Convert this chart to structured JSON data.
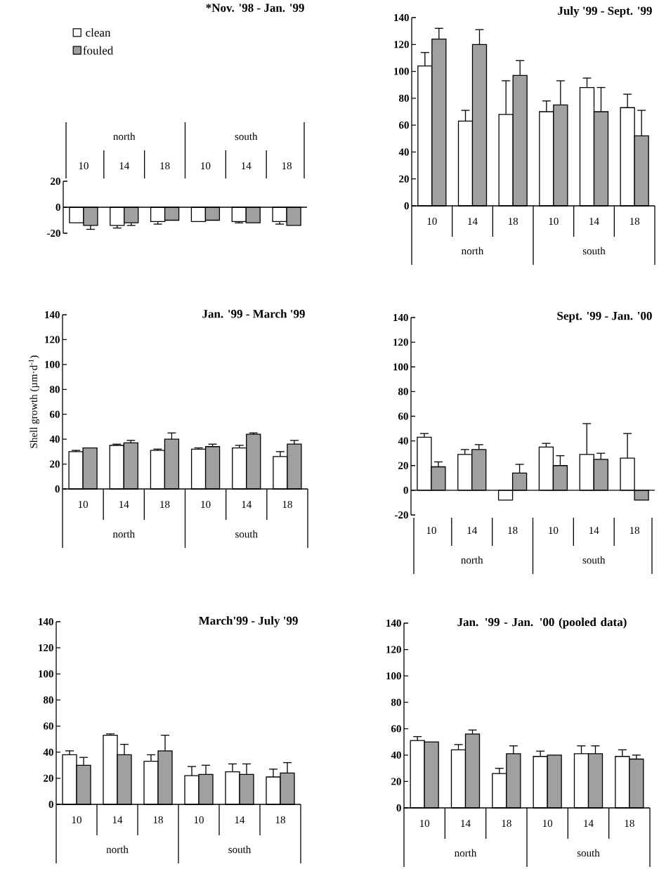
{
  "chart_data": [
    {
      "type": "bar",
      "title": "*Nov. '98 - Jan. '99",
      "categories": [
        "10",
        "14",
        "18",
        "10",
        "14",
        "18"
      ],
      "annotations": [
        "north",
        "south"
      ],
      "ylim": [
        -20,
        20
      ],
      "yticks": [
        -20,
        0,
        20
      ],
      "legend": "top left",
      "series": [
        {
          "name": "clean",
          "color": "#ffffff",
          "values": [
            -12,
            -14,
            -11,
            -11,
            -11,
            -11
          ],
          "errors": [
            null,
            [
              -16,
              -14
            ],
            [
              -13,
              -11
            ],
            null,
            [
              -12,
              -11
            ],
            [
              -13,
              -11
            ]
          ]
        },
        {
          "name": "fouled",
          "color": "#a0a0a0",
          "values": [
            -14,
            -12,
            -10,
            -10,
            -12,
            -14
          ],
          "errors": [
            [
              -17,
              -14
            ],
            [
              -14,
              -12
            ],
            null,
            null,
            null,
            null
          ]
        }
      ]
    },
    {
      "type": "bar",
      "title": "July '99 - Sept. '99",
      "categories": [
        "10",
        "14",
        "18",
        "10",
        "14",
        "18"
      ],
      "annotations": [
        "north",
        "south"
      ],
      "ylim": [
        0,
        140
      ],
      "yticks": [
        0,
        20,
        40,
        60,
        80,
        100,
        120,
        140
      ],
      "series": [
        {
          "color": "#ffffff",
          "values": [
            104,
            63,
            68,
            70,
            88,
            73
          ],
          "errors": [
            [
              104,
              114
            ],
            [
              63,
              71
            ],
            [
              68,
              93
            ],
            [
              70,
              78
            ],
            [
              88,
              95
            ],
            [
              73,
              83
            ]
          ]
        },
        {
          "color": "#a0a0a0",
          "values": [
            124,
            120,
            97,
            75,
            70,
            52
          ],
          "errors": [
            [
              124,
              132
            ],
            [
              120,
              131
            ],
            [
              97,
              108
            ],
            [
              75,
              93
            ],
            [
              70,
              88
            ],
            [
              52,
              71
            ]
          ]
        }
      ]
    },
    {
      "type": "bar",
      "title": "Jan. '99 - March '99",
      "ylabel": "Shell growth (µm·d$^{-1}$)",
      "categories": [
        "10",
        "14",
        "18",
        "10",
        "14",
        "18"
      ],
      "annotations": [
        "north",
        "south"
      ],
      "ylim": [
        0,
        140
      ],
      "yticks": [
        0,
        20,
        40,
        60,
        80,
        100,
        120,
        140
      ],
      "series": [
        {
          "color": "#ffffff",
          "values": [
            30,
            35,
            31,
            32,
            33,
            26
          ],
          "errors": [
            [
              30,
              31
            ],
            [
              35,
              36
            ],
            [
              31,
              32
            ],
            [
              32,
              33
            ],
            [
              33,
              35
            ],
            [
              26,
              30
            ]
          ]
        },
        {
          "color": "#a0a0a0",
          "values": [
            33,
            37,
            40,
            34,
            44,
            36
          ],
          "errors": [
            null,
            [
              37,
              39
            ],
            [
              40,
              45
            ],
            [
              34,
              36
            ],
            [
              44,
              45
            ],
            [
              36,
              39
            ]
          ]
        }
      ]
    },
    {
      "type": "bar",
      "title": "Sept. '99 - Jan. '00",
      "categories": [
        "10",
        "14",
        "18",
        "10",
        "14",
        "18"
      ],
      "annotations": [
        "north",
        "south"
      ],
      "ylim": [
        -20,
        140
      ],
      "yticks": [
        -20,
        0,
        20,
        40,
        60,
        80,
        100,
        120,
        140
      ],
      "series": [
        {
          "color": "#ffffff",
          "values": [
            43,
            29,
            -8,
            35,
            29,
            26
          ],
          "errors": [
            [
              43,
              46
            ],
            [
              29,
              33
            ],
            null,
            [
              35,
              38
            ],
            [
              29,
              54
            ],
            [
              26,
              46
            ]
          ]
        },
        {
          "color": "#a0a0a0",
          "values": [
            19,
            33,
            14,
            20,
            25,
            -8
          ],
          "errors": [
            [
              19,
              23
            ],
            [
              33,
              37
            ],
            [
              14,
              21
            ],
            [
              20,
              28
            ],
            [
              25,
              30
            ],
            null
          ]
        }
      ]
    },
    {
      "type": "bar",
      "title": "March'99 - July '99",
      "categories": [
        "10",
        "14",
        "18",
        "10",
        "14",
        "18"
      ],
      "annotations": [
        "north",
        "south"
      ],
      "ylim": [
        0,
        140
      ],
      "yticks": [
        0,
        20,
        40,
        60,
        80,
        100,
        120,
        140
      ],
      "series": [
        {
          "color": "#ffffff",
          "values": [
            38,
            53,
            33,
            22,
            25,
            21
          ],
          "errors": [
            [
              38,
              41
            ],
            [
              53,
              54
            ],
            [
              33,
              38
            ],
            [
              22,
              29
            ],
            [
              25,
              31
            ],
            [
              21,
              27
            ]
          ]
        },
        {
          "color": "#a0a0a0",
          "values": [
            30,
            38,
            41,
            23,
            23,
            24
          ],
          "errors": [
            [
              30,
              36
            ],
            [
              38,
              46
            ],
            [
              41,
              53
            ],
            [
              23,
              30
            ],
            [
              23,
              31
            ],
            [
              24,
              32
            ]
          ]
        }
      ]
    },
    {
      "type": "bar",
      "title": "Jan. '99 - Jan. '00 (pooled data)",
      "categories": [
        "10",
        "14",
        "18",
        "10",
        "14",
        "18"
      ],
      "annotations": [
        "north",
        "south"
      ],
      "ylim": [
        0,
        140
      ],
      "yticks": [
        0,
        20,
        40,
        60,
        80,
        100,
        120,
        140
      ],
      "series": [
        {
          "color": "#ffffff",
          "values": [
            51,
            44,
            26,
            39,
            41,
            39
          ],
          "errors": [
            [
              51,
              54
            ],
            [
              44,
              48
            ],
            [
              26,
              30
            ],
            [
              39,
              43
            ],
            [
              41,
              47
            ],
            [
              39,
              44
            ]
          ]
        },
        {
          "color": "#a0a0a0",
          "values": [
            50,
            56,
            41,
            40,
            41,
            37
          ],
          "errors": [
            null,
            [
              56,
              59
            ],
            [
              41,
              47
            ],
            null,
            [
              41,
              47
            ],
            [
              37,
              40
            ]
          ]
        }
      ]
    }
  ]
}
